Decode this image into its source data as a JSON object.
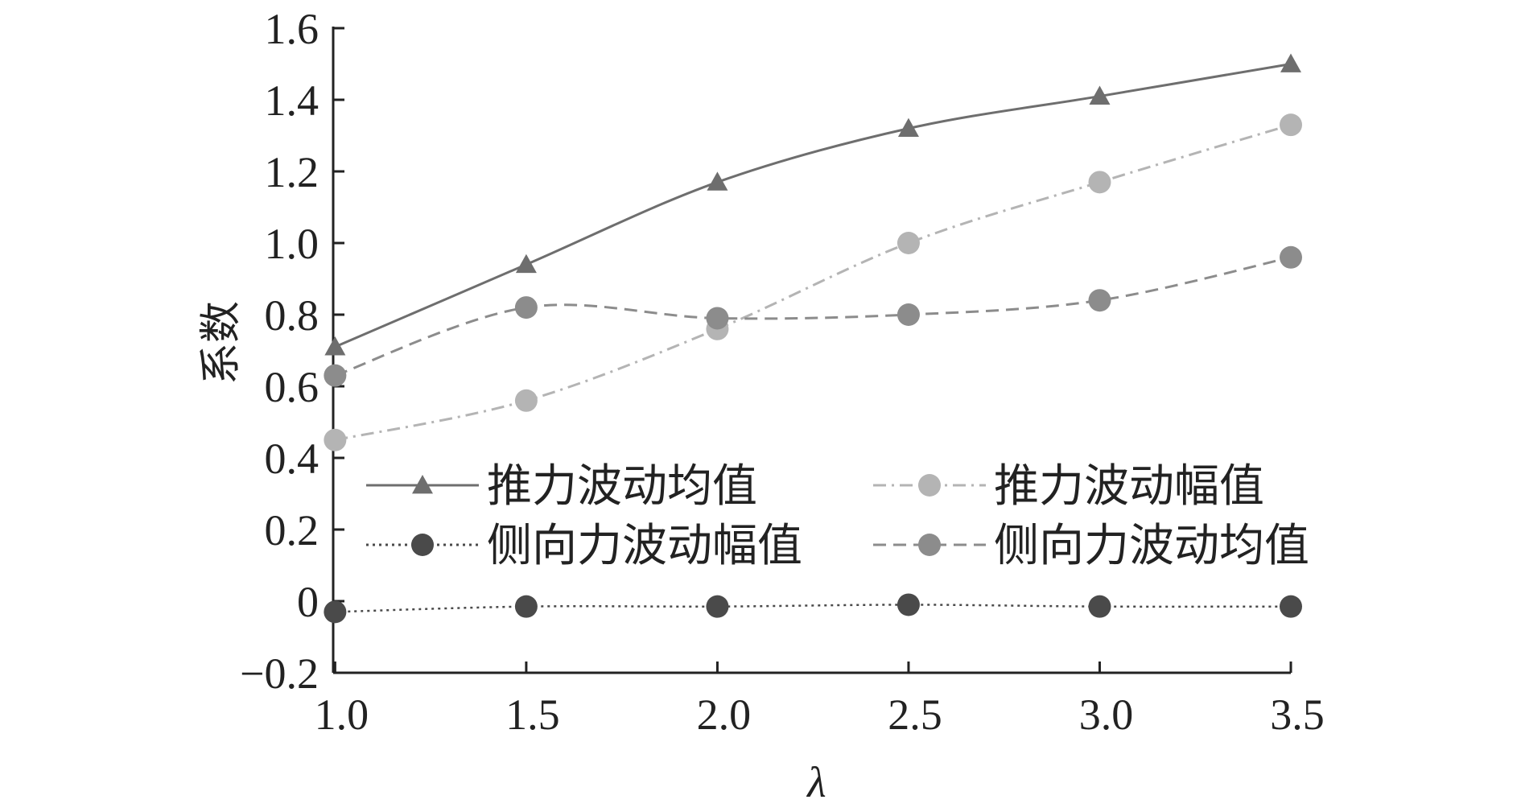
{
  "chart_data": {
    "type": "line",
    "xlabel": "λ",
    "ylabel": "系数",
    "xlim": [
      0.995,
      3.5
    ],
    "ylim": [
      -0.2,
      1.6
    ],
    "x": [
      1.0,
      1.5,
      2.0,
      2.5,
      3.0,
      3.5
    ],
    "x_ticks": [
      1.0,
      1.5,
      2.0,
      2.5,
      3.0,
      3.5
    ],
    "x_tick_labels": [
      "1.0",
      "1.5",
      "2.0",
      "2.5",
      "3.0",
      "3.5"
    ],
    "y_ticks": [
      -0.2,
      0,
      0.2,
      0.4,
      0.6,
      0.8,
      1.0,
      1.2,
      1.4,
      1.6
    ],
    "y_tick_labels": [
      "−0.2",
      "0",
      "0.2",
      "0.4",
      "0.6",
      "0.8",
      "1.0",
      "1.2",
      "1.4",
      "1.6"
    ],
    "grid": false,
    "legend_position": "center",
    "series": [
      {
        "name": "推力波动均值",
        "values": [
          0.71,
          0.94,
          1.17,
          1.32,
          1.41,
          1.5
        ],
        "color": "#6e6e6e",
        "dash": "solid",
        "marker": "triangle"
      },
      {
        "name": "推力波动幅值",
        "values": [
          0.45,
          0.56,
          0.76,
          1.0,
          1.17,
          1.33
        ],
        "color": "#b4b4b4",
        "dash": "dashdot",
        "marker": "circle"
      },
      {
        "name": "侧向力波动幅值",
        "values": [
          -0.03,
          -0.015,
          -0.015,
          -0.01,
          -0.015,
          -0.015
        ],
        "color": "#4a4a4a",
        "dash": "dotted",
        "marker": "circle"
      },
      {
        "name": "侧向力波动均值",
        "values": [
          0.63,
          0.82,
          0.79,
          0.8,
          0.84,
          0.96
        ],
        "color": "#8c8c8c",
        "dash": "dashed",
        "marker": "circle"
      }
    ]
  }
}
